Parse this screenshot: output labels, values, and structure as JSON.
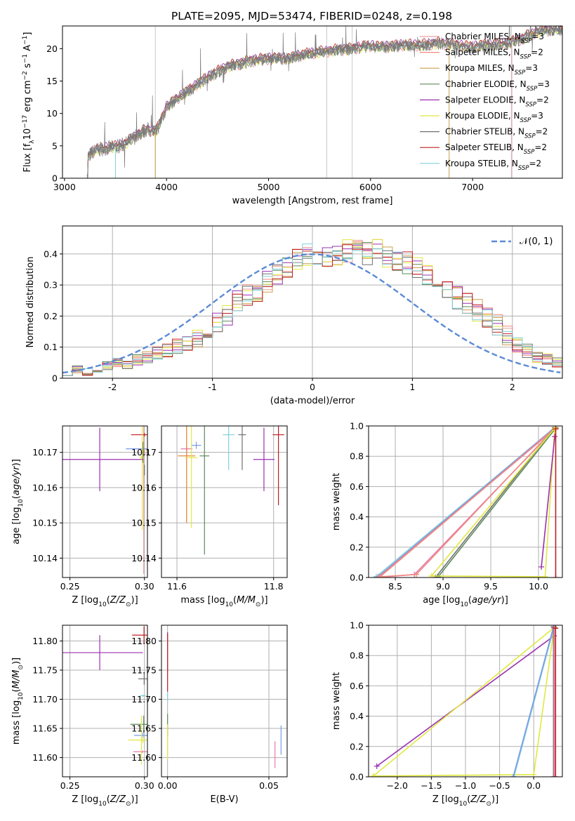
{
  "figure": {
    "title": "PLATE=2095, MJD=53474, FIBERID=0248, z=0.198"
  },
  "colors": {
    "axes": "#000000",
    "grid": "#b0b0b0",
    "normal_curve": "#5b8bd6",
    "series": [
      "#e8a0a0",
      "#f08a80",
      "#c8a050",
      "#5e8a5e",
      "#9b30b0",
      "#e0e840",
      "#707070",
      "#c02020",
      "#80d0d8"
    ],
    "extra": [
      "#e87b2a",
      "#7a9ae8",
      "#e87bb0"
    ]
  },
  "legend": [
    {
      "label": "Chabrier MILES, N",
      "sub": "SSP",
      "suffix": "=3"
    },
    {
      "label": "Salpeter MILES, N",
      "sub": "SSP",
      "suffix": "=2"
    },
    {
      "label": "Kroupa MILES, N",
      "sub": "SSP",
      "suffix": "=3"
    },
    {
      "label": "Chabrier ELODIE, N",
      "sub": "SSP",
      "suffix": "=3"
    },
    {
      "label": "Salpeter ELODIE, N",
      "sub": "SSP",
      "suffix": "=2"
    },
    {
      "label": "Kroupa ELODIE, N",
      "sub": "SSP",
      "suffix": "=3"
    },
    {
      "label": "Chabrier STELIB, N",
      "sub": "SSP",
      "suffix": "=2"
    },
    {
      "label": "Salpeter STELIB, N",
      "sub": "SSP",
      "suffix": "=2"
    },
    {
      "label": "Kroupa STELIB, N",
      "sub": "SSP",
      "suffix": "=2"
    }
  ],
  "chart_data": [
    {
      "id": "spectrum",
      "type": "line",
      "xlabel": "wavelength [Angstrom, rest frame]",
      "ylabel": "Flux [f_λ 10^-17 erg cm^-2 s^-1 A^-1]",
      "xlim": [
        2980,
        7880
      ],
      "ylim": [
        0,
        23.5
      ],
      "xticks": [
        3000,
        4000,
        5000,
        6000,
        7000
      ],
      "yticks": [
        0,
        5,
        10,
        15,
        20
      ],
      "grid": false,
      "legend_position": "top-right",
      "data_range": [
        3220,
        7880
      ],
      "model_envelope": {
        "x": [
          3220,
          3300,
          3400,
          3500,
          3600,
          3700,
          3800,
          3900,
          4000,
          4100,
          4200,
          4300,
          4400,
          4500,
          4600,
          4700,
          4800,
          4900,
          5000,
          5100,
          5200,
          5300,
          5400,
          5500,
          5600,
          5700,
          5800,
          5900,
          6000,
          6100,
          6200,
          6300,
          6400,
          6500,
          6600,
          6700,
          6800,
          6900,
          7000,
          7100,
          7200,
          7300,
          7400,
          7500,
          7600,
          7700,
          7800,
          7880
        ],
        "y": [
          3.2,
          4.3,
          4.6,
          4.8,
          5.3,
          6.5,
          7.5,
          7.2,
          11.0,
          12.2,
          13.3,
          14.4,
          15.5,
          16.4,
          17.2,
          17.6,
          18.0,
          18.3,
          18.4,
          18.5,
          18.4,
          18.9,
          19.2,
          19.4,
          19.6,
          19.8,
          19.9,
          20.2,
          20.4,
          20.2,
          20.3,
          20.5,
          20.5,
          20.5,
          20.7,
          20.8,
          20.6,
          20.4,
          20.2,
          20.5,
          20.6,
          20.7,
          21.0,
          21.6,
          22.4,
          22.8,
          22.9,
          23.0
        ]
      },
      "masked_lines_x": [
        3890,
        5570,
        5820,
        7380
      ]
    },
    {
      "id": "residuals",
      "type": "line",
      "xlabel": "(data-model)/error",
      "ylabel": "Normed distribution",
      "xlim": [
        -2.5,
        2.5
      ],
      "ylim": [
        0,
        0.49
      ],
      "xticks": [
        -2,
        -1,
        0,
        1,
        2
      ],
      "yticks": [
        0.0,
        0.1,
        0.2,
        0.3,
        0.4
      ],
      "grid": true,
      "legend": "𝒩(0, 1)",
      "legend_position": "top-right",
      "bins": [
        -2.5,
        -2.4,
        -2.3,
        -2.2,
        -2.1,
        -2.0,
        -1.9,
        -1.8,
        -1.7,
        -1.6,
        -1.5,
        -1.4,
        -1.3,
        -1.2,
        -1.1,
        -1.0,
        -0.9,
        -0.8,
        -0.7,
        -0.6,
        -0.5,
        -0.4,
        -0.3,
        -0.2,
        -0.1,
        0.0,
        0.1,
        0.2,
        0.3,
        0.4,
        0.5,
        0.6,
        0.7,
        0.8,
        0.9,
        1.0,
        1.1,
        1.2,
        1.3,
        1.4,
        1.5,
        1.6,
        1.7,
        1.8,
        1.9,
        2.0,
        2.1,
        2.2,
        2.3,
        2.4,
        2.5
      ],
      "hist_mean": [
        0.02,
        0.03,
        0.02,
        0.03,
        0.04,
        0.05,
        0.04,
        0.06,
        0.07,
        0.08,
        0.09,
        0.1,
        0.11,
        0.13,
        0.15,
        0.18,
        0.2,
        0.25,
        0.27,
        0.28,
        0.31,
        0.34,
        0.36,
        0.38,
        0.4,
        0.39,
        0.39,
        0.4,
        0.41,
        0.42,
        0.4,
        0.41,
        0.39,
        0.38,
        0.37,
        0.36,
        0.33,
        0.31,
        0.29,
        0.26,
        0.24,
        0.22,
        0.19,
        0.17,
        0.14,
        0.11,
        0.09,
        0.07,
        0.06,
        0.05
      ]
    },
    {
      "id": "age_vs_Z",
      "type": "scatter",
      "xlabel": "Z [log10(Z/Z⊙)]",
      "ylabel": "age [log10(age/yr)]",
      "xlim": [
        0.245,
        0.302
      ],
      "ylim": [
        10.1345,
        10.1775
      ],
      "xticks": [
        0.25,
        0.3
      ],
      "xticklabels": [
        "0.25",
        "0.30"
      ],
      "yticks": [
        10.14,
        10.15,
        10.16,
        10.17
      ],
      "grid": true,
      "points": [
        {
          "x": 0.2995,
          "xerr": 0.0007,
          "y": 10.175,
          "yerr": 0.0395,
          "c": 0
        },
        {
          "x": 0.2992,
          "xerr": 0.0117,
          "y": 10.171,
          "yerr": 0.0005,
          "c": 10
        },
        {
          "x": 0.2998,
          "xerr": 0.0003,
          "y": 10.1705,
          "yerr": 0.0005,
          "c": 9
        },
        {
          "x": 0.2997,
          "xerr": 0.0011,
          "y": 10.1695,
          "yerr": 0.0005,
          "c": 3
        },
        {
          "x": 0.2996,
          "xerr": 0.0011,
          "y": 10.1695,
          "yerr": 0.0005,
          "c": 11
        },
        {
          "x": 0.3,
          "xerr": 0.0001,
          "y": 10.165,
          "yerr": 0.0015,
          "c": 6
        },
        {
          "x": 0.3,
          "xerr": 0.009,
          "y": 10.175,
          "yerr": 0.0005,
          "c": 7
        },
        {
          "x": 0.299,
          "xerr": 0.0007,
          "y": 10.17,
          "yerr": 0.003,
          "c": 3
        },
        {
          "x": 0.2985,
          "xerr": 0.0002,
          "y": 10.168,
          "yerr": 0.02,
          "c": 5
        },
        {
          "x": 0.27,
          "xerr": 0.029,
          "y": 10.168,
          "yerr": 0.009,
          "c": 4
        },
        {
          "x": 0.298,
          "xerr": 0.001,
          "y": 10.1685,
          "yerr": 0.0005,
          "c": 5
        }
      ]
    },
    {
      "id": "age_vs_mass",
      "type": "scatter",
      "xlabel": "mass [log10(M/M⊙)]",
      "ylabel": "",
      "xlim": [
        11.568,
        11.828
      ],
      "ylim": [
        10.1345,
        10.1775
      ],
      "xticks": [
        11.6,
        11.8
      ],
      "xticklabels": [
        "11.6",
        "11.8"
      ],
      "yticks": [
        10.14,
        10.15,
        10.16,
        10.17
      ],
      "grid": true,
      "points": [
        {
          "x": 11.62,
          "xerr": 0.012,
          "y": 10.171,
          "yerr": 0.0005,
          "c": 11
        },
        {
          "x": 11.64,
          "xerr": 0.01,
          "y": 10.172,
          "yerr": 0.001,
          "c": 10
        },
        {
          "x": 11.62,
          "xerr": 0.018,
          "y": 10.169,
          "yerr": 0.019,
          "c": 9
        },
        {
          "x": 11.63,
          "xerr": 0.013,
          "y": 10.1685,
          "yerr": 0.02,
          "c": 5
        },
        {
          "x": 11.657,
          "xerr": 0.01,
          "y": 10.169,
          "yerr": 0.028,
          "c": 3
        },
        {
          "x": 11.697,
          "xerr": 0.023,
          "y": 10.168,
          "yerr": 0.032,
          "c": 12
        },
        {
          "x": 11.707,
          "xerr": 0.012,
          "y": 10.175,
          "yerr": 0.01,
          "c": 8
        },
        {
          "x": 11.735,
          "xerr": 0.008,
          "y": 10.175,
          "yerr": 0.01,
          "c": 6
        },
        {
          "x": 11.78,
          "xerr": 0.022,
          "y": 10.168,
          "yerr": 0.009,
          "c": 4
        },
        {
          "x": 11.81,
          "xerr": 0.012,
          "y": 10.175,
          "yerr": 0.02,
          "c": 7
        }
      ]
    },
    {
      "id": "weight_vs_age",
      "type": "line",
      "xlabel": "age [log10(age/yr)]",
      "ylabel": "mass weight",
      "xlim": [
        8.22,
        10.25
      ],
      "ylim": [
        0,
        1
      ],
      "xticks": [
        8.5,
        9.0,
        9.5,
        10.0
      ],
      "xticklabels": [
        "8.5",
        "9.0",
        "9.5",
        "10.0"
      ],
      "yticks": [
        0,
        0.2,
        0.4,
        0.6,
        0.8,
        1.0
      ],
      "yticklabels": [
        "0.0",
        "0.2",
        "0.4",
        "0.6",
        "0.8",
        "1.0"
      ],
      "grid": true,
      "series": [
        {
          "c": 8,
          "x": [
            8.3,
            10.17,
            8.3
          ],
          "y": [
            0.005,
            0.99,
            0.005
          ]
        },
        {
          "c": 10,
          "x": [
            8.32,
            10.17,
            8.32
          ],
          "y": [
            0.005,
            0.99,
            0.005
          ]
        },
        {
          "c": 9,
          "x": [
            8.34,
            10.18,
            8.34
          ],
          "y": [
            0.005,
            0.99,
            0.005
          ]
        },
        {
          "c": 11,
          "x": [
            8.32,
            8.7,
            10.17,
            8.32
          ],
          "y": [
            0.0,
            0.02,
            0.98,
            0.0
          ]
        },
        {
          "c": 1,
          "x": [
            8.34,
            8.72,
            10.17,
            8.34
          ],
          "y": [
            0.005,
            0.02,
            0.985,
            0.005
          ]
        },
        {
          "c": 3,
          "x": [
            8.95,
            10.18,
            8.95
          ],
          "y": [
            0.005,
            0.985,
            0.005
          ]
        },
        {
          "c": 6,
          "x": [
            8.92,
            10.17,
            8.92
          ],
          "y": [
            0.0,
            0.99,
            0.0
          ]
        },
        {
          "c": 5,
          "x": [
            8.88,
            10.07,
            10.17,
            8.88
          ],
          "y": [
            0.01,
            0.005,
            0.985,
            0.01
          ]
        },
        {
          "c": 4,
          "x": [
            10.03,
            10.17
          ],
          "y": [
            0.07,
            0.93
          ]
        },
        {
          "c": 7,
          "x": [
            10.18,
            10.18
          ],
          "y": [
            0.0,
            0.98
          ]
        }
      ]
    },
    {
      "id": "mass_vs_Z",
      "type": "scatter",
      "xlabel": "Z [log10(Z/Z⊙)]",
      "ylabel": "mass [log10(M/M⊙)]",
      "xlim": [
        0.245,
        0.302
      ],
      "ylim": [
        11.567,
        11.827
      ],
      "xticks": [
        0.25,
        0.3
      ],
      "xticklabels": [
        "0.25",
        "0.30"
      ],
      "yticks": [
        11.6,
        11.65,
        11.7,
        11.75,
        11.8
      ],
      "yticklabels": [
        "11.60",
        "11.65",
        "11.70",
        "11.75",
        "11.80"
      ],
      "grid": true,
      "points": [
        {
          "x": 0.2997,
          "xerr": 0.008,
          "y": 11.81,
          "yerr": 0.015,
          "c": 7
        },
        {
          "x": 0.27,
          "xerr": 0.029,
          "y": 11.78,
          "yerr": 0.03,
          "c": 4
        },
        {
          "x": 0.2998,
          "xerr": 0.004,
          "y": 11.735,
          "yerr": 0.01,
          "c": 6
        },
        {
          "x": 0.299,
          "xerr": 0.002,
          "y": 11.706,
          "yerr": 0.002,
          "c": 8
        },
        {
          "x": 0.2996,
          "xerr": 0.01,
          "y": 11.697,
          "yerr": 0.01,
          "c": 12
        },
        {
          "x": 0.2995,
          "xerr": 0.009,
          "y": 11.657,
          "yerr": 0.015,
          "c": 3
        },
        {
          "x": 0.299,
          "xerr": 0.006,
          "y": 11.638,
          "yerr": 0.005,
          "c": 10
        },
        {
          "x": 0.299,
          "xerr": 0.01,
          "y": 11.63,
          "yerr": 0.005,
          "c": 5
        },
        {
          "x": 0.2985,
          "xerr": 0.006,
          "y": 11.61,
          "yerr": 0.002,
          "c": 11
        },
        {
          "x": 0.298,
          "xerr": 0.001,
          "y": 11.63,
          "yerr": 0.042,
          "c": 5
        }
      ]
    },
    {
      "id": "mass_vs_ebv",
      "type": "scatter",
      "xlabel": "E(B-V)",
      "ylabel": "",
      "xlim": [
        -0.003,
        0.059
      ],
      "ylim": [
        11.567,
        11.827
      ],
      "xticks": [
        0.0,
        0.05
      ],
      "xticklabels": [
        "0.00",
        "0.05"
      ],
      "yticks": [
        11.6,
        11.65,
        11.7,
        11.75,
        11.8
      ],
      "yticklabels": [
        "11.60",
        "11.65",
        "11.70",
        "11.75",
        "11.80"
      ],
      "grid": true,
      "points": [
        {
          "x": 0.0,
          "xerr": 0.0,
          "y": 11.78,
          "yerr": 0.035,
          "c": 4
        },
        {
          "x": 0.0,
          "xerr": 0.0,
          "y": 11.763,
          "yerr": 0.05,
          "c": 7
        },
        {
          "x": 0.0,
          "xerr": 0.0,
          "y": 11.703,
          "yerr": 0.008,
          "c": 8
        },
        {
          "x": 0.0,
          "xerr": 0.0,
          "y": 11.655,
          "yerr": 0.02,
          "c": 3
        },
        {
          "x": 0.0,
          "xerr": 0.0,
          "y": 11.627,
          "yerr": 0.03,
          "c": 5
        },
        {
          "x": 0.054,
          "xerr": 0.0,
          "y": 11.698,
          "yerr": 0.028,
          "c": 12
        },
        {
          "x": 0.056,
          "xerr": 0.0,
          "y": 11.63,
          "yerr": 0.025,
          "c": 10
        },
        {
          "x": 0.053,
          "xerr": 0.0,
          "y": 11.605,
          "yerr": 0.023,
          "c": 11
        }
      ]
    },
    {
      "id": "weight_vs_Z",
      "type": "line",
      "xlabel": "Z [log10(Z/Z⊙)]",
      "ylabel": "mass weight",
      "xlim": [
        -2.42,
        0.42
      ],
      "ylim": [
        0,
        1
      ],
      "xticks": [
        -2.0,
        -1.5,
        -1.0,
        -0.5,
        0.0
      ],
      "xticklabels": [
        "−2.0",
        "−1.5",
        "−1.0",
        "−0.5",
        "0.0"
      ],
      "yticks": [
        0,
        0.2,
        0.4,
        0.6,
        0.8,
        1.0
      ],
      "yticklabels": [
        "0.0",
        "0.2",
        "0.4",
        "0.6",
        "0.8",
        "1.0"
      ],
      "grid": true,
      "series": [
        {
          "c": 4,
          "x": [
            -2.3,
            0.3
          ],
          "y": [
            0.07,
            0.93
          ]
        },
        {
          "c": 5,
          "x": [
            -2.35,
            0.0,
            0.3,
            -2.35
          ],
          "y": [
            0.005,
            0.015,
            0.985,
            0.005
          ]
        },
        {
          "c": 8,
          "x": [
            -0.29,
            0.3,
            -0.29
          ],
          "y": [
            0.0,
            0.99,
            0.0
          ]
        },
        {
          "c": 10,
          "x": [
            -0.3,
            0.29,
            -0.3
          ],
          "y": [
            0.0,
            0.99,
            0.0
          ]
        },
        {
          "c": 3,
          "x": [
            0.3,
            0.3
          ],
          "y": [
            0.0,
            0.985
          ]
        },
        {
          "c": 6,
          "x": [
            0.29,
            0.29
          ],
          "y": [
            0.0,
            0.99
          ]
        },
        {
          "c": 11,
          "x": [
            0.3,
            0.3
          ],
          "y": [
            0.0,
            0.98
          ]
        },
        {
          "c": 7,
          "x": [
            0.32,
            0.32
          ],
          "y": [
            0.0,
            0.98
          ]
        }
      ]
    }
  ]
}
